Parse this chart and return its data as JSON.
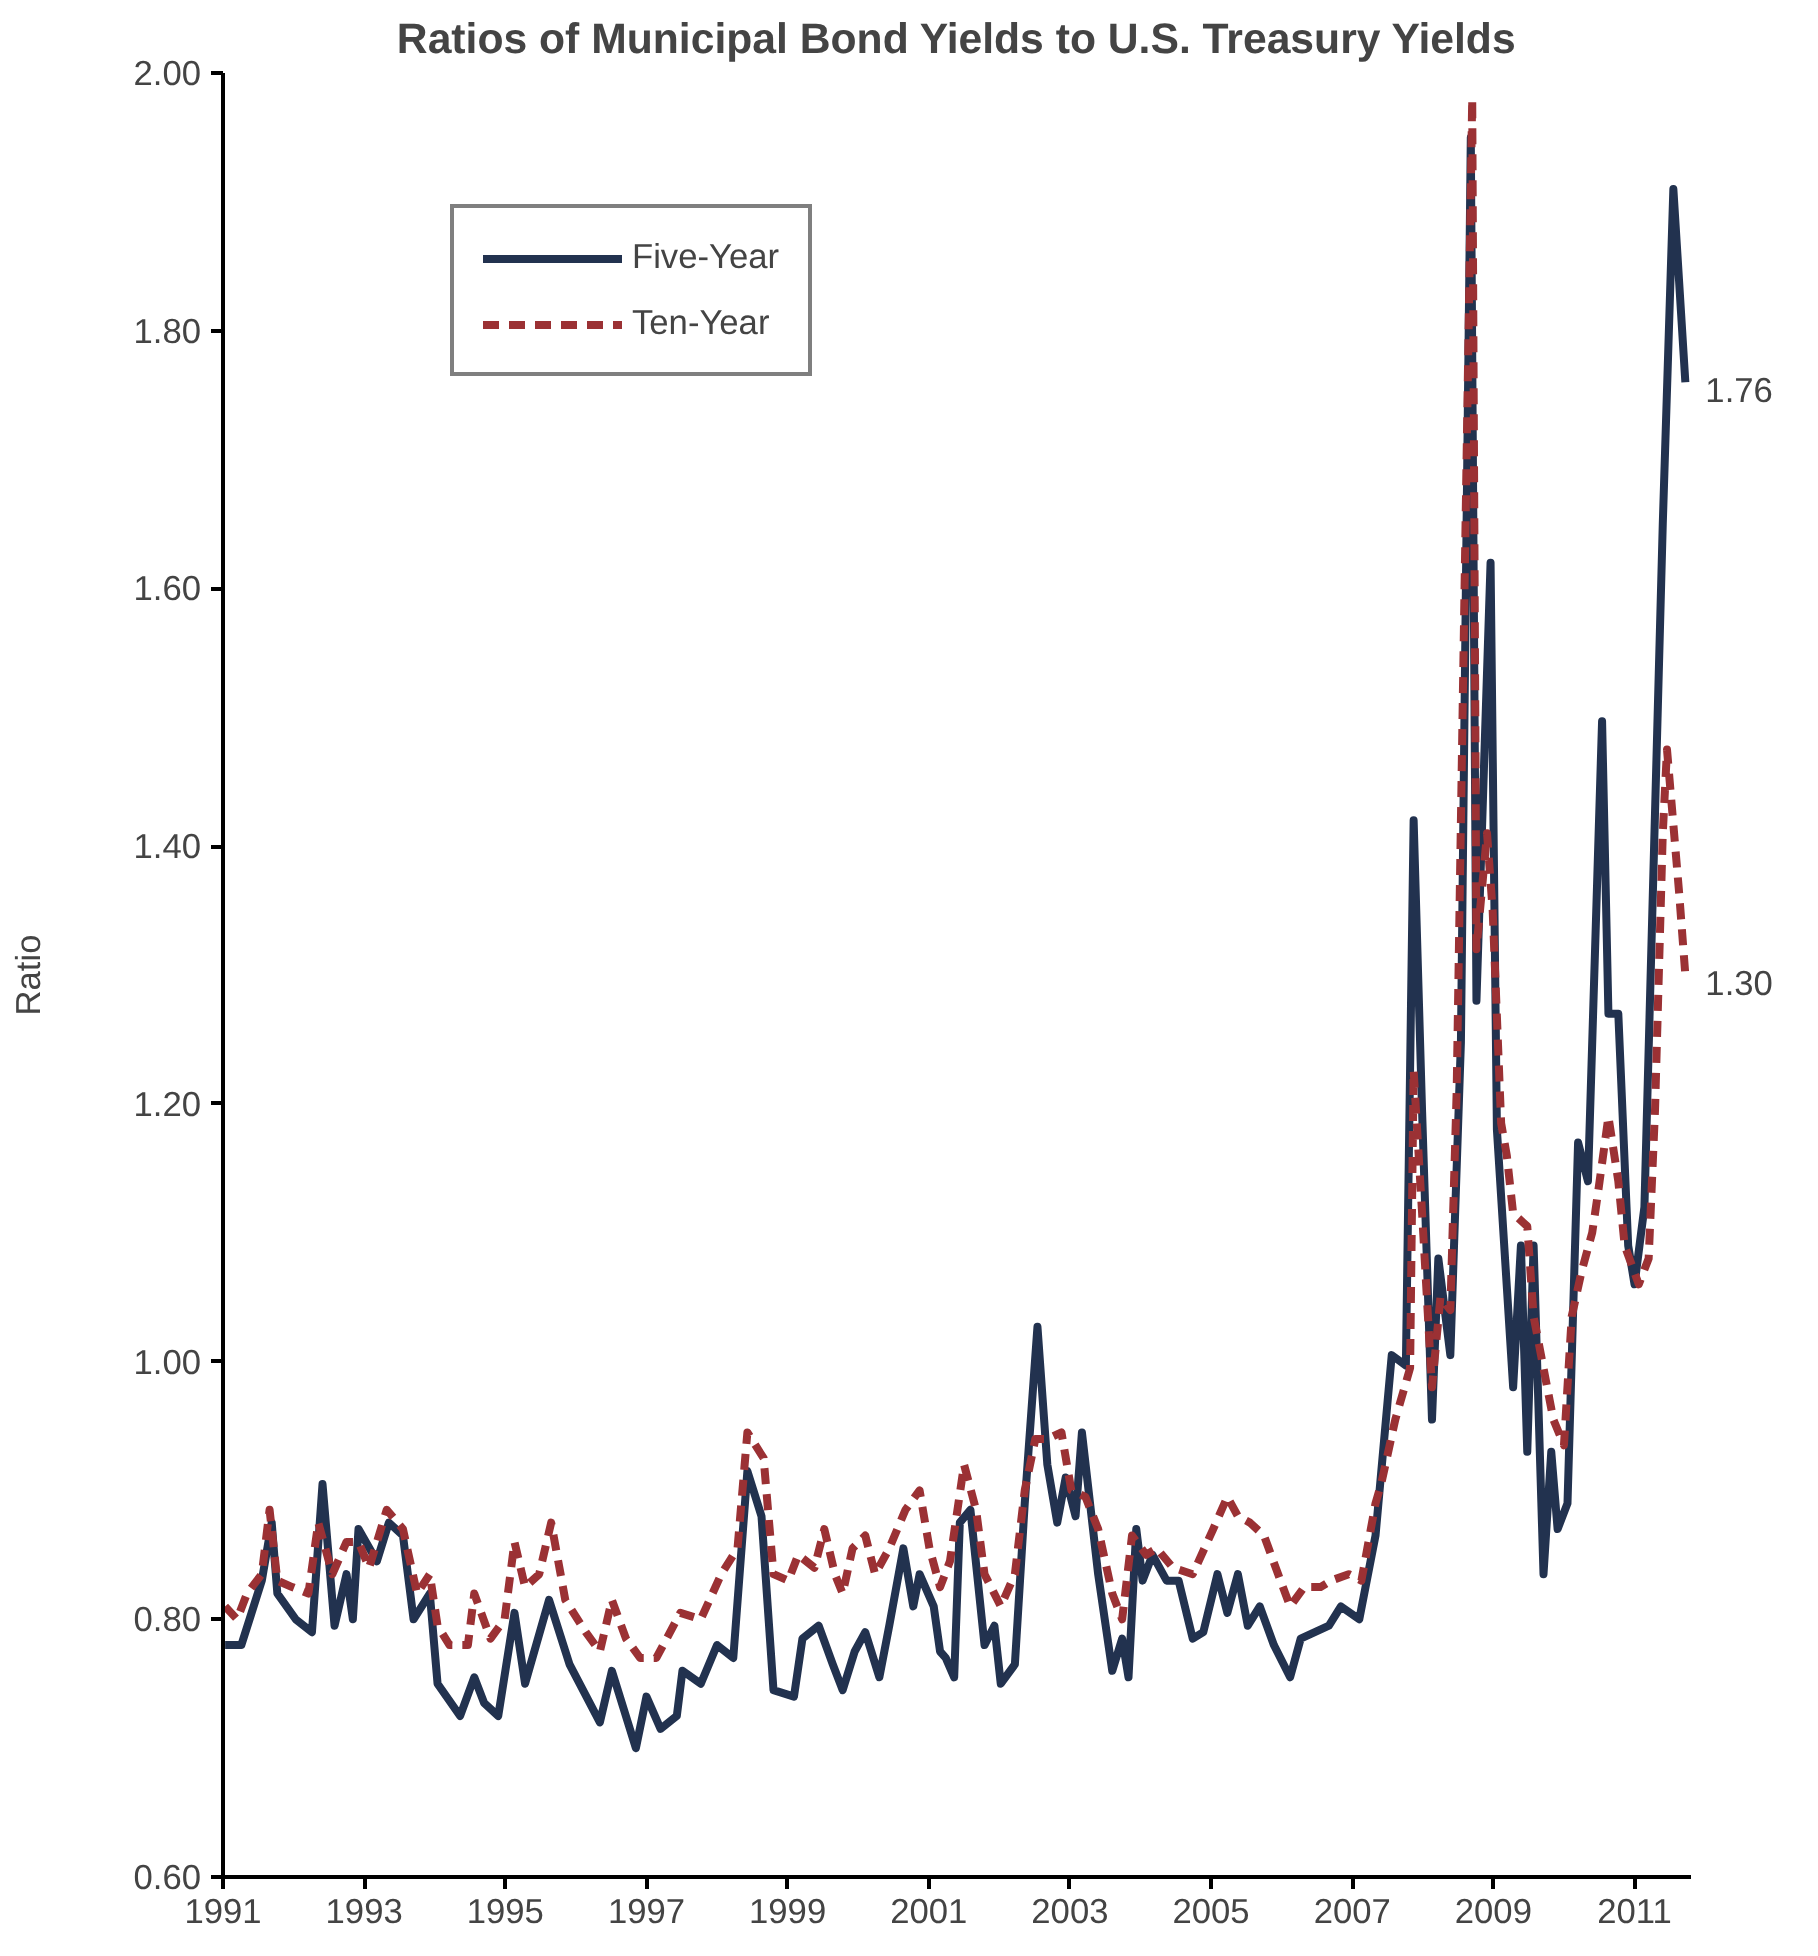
{
  "chart_data": {
    "type": "line",
    "title": "Ratios of Municipal Bond Yields to U.S. Treasury Yields",
    "ylabel": "Ratio",
    "xlim": [
      1991,
      2011.8
    ],
    "xticks": [
      1991,
      1993,
      1995,
      1997,
      1999,
      2001,
      2003,
      2005,
      2007,
      2009,
      2011
    ],
    "ylim": [
      0.6,
      2.0
    ],
    "yticks": [
      {
        "value": 0.6,
        "label": "0.60"
      },
      {
        "value": 0.8,
        "label": "0.80"
      },
      {
        "value": 1.0,
        "label": "1.00"
      },
      {
        "value": 1.2,
        "label": "1.20"
      },
      {
        "value": 1.4,
        "label": "1.40"
      },
      {
        "value": 1.6,
        "label": "1.60"
      },
      {
        "value": 1.8,
        "label": "1.80"
      },
      {
        "value": 2.0,
        "label": "2.00"
      }
    ],
    "grid": false,
    "legend": "top left",
    "annotations": [
      {
        "text": "1.76",
        "x": 2011.72,
        "y": 1.76
      },
      {
        "text": "1.30",
        "x": 2011.72,
        "y": 1.3
      }
    ],
    "series": [
      {
        "name": "Five-Year",
        "color": "#22324f",
        "line_style": "solid",
        "x": [
          1991.03,
          1991.26,
          1991.55,
          1991.69,
          1991.77,
          1992.03,
          1992.26,
          1992.41,
          1992.58,
          1992.75,
          1992.84,
          1992.92,
          1993.18,
          1993.35,
          1993.55,
          1993.7,
          1993.93,
          1994.04,
          1994.36,
          1994.56,
          1994.7,
          1994.9,
          1995.13,
          1995.28,
          1995.62,
          1995.91,
          1996.34,
          1996.51,
          1996.85,
          1997.0,
          1997.2,
          1997.43,
          1997.51,
          1997.77,
          1998.0,
          1998.23,
          1998.43,
          1998.63,
          1998.8,
          1999.09,
          1999.21,
          1999.44,
          1999.64,
          1999.78,
          1999.95,
          2000.1,
          2000.3,
          2000.44,
          2000.64,
          2000.78,
          2000.87,
          2001.07,
          2001.16,
          2001.24,
          2001.36,
          2001.44,
          2001.59,
          2001.79,
          2001.93,
          2002.02,
          2002.22,
          2002.36,
          2002.54,
          2002.68,
          2002.82,
          2002.94,
          2003.08,
          2003.17,
          2003.4,
          2003.6,
          2003.74,
          2003.83,
          2003.94,
          2004.03,
          2004.17,
          2004.37,
          2004.54,
          2004.74,
          2004.89,
          2005.09,
          2005.23,
          2005.38,
          2005.52,
          2005.69,
          2005.89,
          2006.12,
          2006.27,
          2006.47,
          2006.67,
          2006.84,
          2007.1,
          2007.33,
          2007.56,
          2007.76,
          2007.87,
          2007.99,
          2008.13,
          2008.22,
          2008.39,
          2008.54,
          2008.68,
          2008.76,
          2008.96,
          2009.05,
          2009.28,
          2009.39,
          2009.48,
          2009.57,
          2009.71,
          2009.82,
          2009.91,
          2010.05,
          2010.2,
          2010.34,
          2010.54,
          2010.63,
          2010.77,
          2010.91,
          2011.0,
          2011.14,
          2011.4,
          2011.55,
          2011.72
        ],
        "values": [
          0.78,
          0.78,
          0.83,
          0.875,
          0.82,
          0.8,
          0.79,
          0.905,
          0.795,
          0.835,
          0.8,
          0.87,
          0.845,
          0.875,
          0.865,
          0.8,
          0.82,
          0.75,
          0.725,
          0.755,
          0.735,
          0.725,
          0.805,
          0.75,
          0.815,
          0.765,
          0.72,
          0.76,
          0.7,
          0.74,
          0.715,
          0.725,
          0.76,
          0.75,
          0.78,
          0.77,
          0.915,
          0.88,
          0.745,
          0.74,
          0.785,
          0.795,
          0.765,
          0.745,
          0.775,
          0.79,
          0.755,
          0.795,
          0.855,
          0.81,
          0.835,
          0.81,
          0.775,
          0.77,
          0.755,
          0.875,
          0.885,
          0.78,
          0.795,
          0.75,
          0.765,
          0.89,
          1.027,
          0.92,
          0.875,
          0.91,
          0.88,
          0.945,
          0.835,
          0.76,
          0.785,
          0.755,
          0.87,
          0.83,
          0.85,
          0.83,
          0.83,
          0.785,
          0.79,
          0.835,
          0.805,
          0.835,
          0.795,
          0.81,
          0.78,
          0.755,
          0.785,
          0.79,
          0.795,
          0.81,
          0.8,
          0.865,
          1.005,
          0.997,
          1.42,
          1.194,
          0.955,
          1.08,
          1.005,
          1.248,
          1.95,
          1.28,
          1.62,
          1.18,
          0.98,
          1.09,
          0.93,
          1.09,
          0.835,
          0.93,
          0.87,
          0.89,
          1.17,
          1.14,
          1.497,
          1.27,
          1.27,
          1.09,
          1.06,
          1.12,
          1.65,
          1.91,
          1.76
        ]
      },
      {
        "name": "Ten-Year",
        "color": "#9b3134",
        "line_style": "dashed",
        "x": [
          1991.03,
          1991.2,
          1991.34,
          1991.55,
          1991.66,
          1991.77,
          1991.98,
          1992.21,
          1992.35,
          1992.55,
          1992.75,
          1992.92,
          1993.07,
          1993.32,
          1993.55,
          1993.75,
          1993.93,
          1994.04,
          1994.21,
          1994.47,
          1994.56,
          1994.79,
          1994.99,
          1995.13,
          1995.28,
          1995.48,
          1995.65,
          1995.85,
          1996.14,
          1996.34,
          1996.51,
          1996.71,
          1996.91,
          1997.14,
          1997.48,
          1997.77,
          1998.06,
          1998.29,
          1998.43,
          1998.66,
          1998.8,
          1999.01,
          1999.15,
          1999.38,
          1999.52,
          1999.67,
          1999.78,
          1999.92,
          2000.1,
          2000.24,
          2000.44,
          2000.67,
          2000.87,
          2001.01,
          2001.16,
          2001.3,
          2001.5,
          2001.67,
          2001.79,
          2002.02,
          2002.22,
          2002.36,
          2002.51,
          2002.68,
          2002.88,
          2003.02,
          2003.22,
          2003.4,
          2003.6,
          2003.74,
          2003.88,
          2004.08,
          2004.23,
          2004.46,
          2004.74,
          2005.03,
          2005.23,
          2005.38,
          2005.55,
          2005.75,
          2005.95,
          2006.12,
          2006.32,
          2006.55,
          2006.7,
          2006.95,
          2007.13,
          2007.33,
          2007.41,
          2007.61,
          2007.82,
          2007.87,
          2007.99,
          2008.13,
          2008.25,
          2008.39,
          2008.48,
          2008.7,
          2008.76,
          2008.91,
          2008.99,
          2009.11,
          2009.19,
          2009.28,
          2009.48,
          2009.57,
          2009.71,
          2009.85,
          2010.0,
          2010.11,
          2010.25,
          2010.4,
          2010.48,
          2010.63,
          2010.77,
          2010.86,
          2011.06,
          2011.2,
          2011.29,
          2011.4,
          2011.46,
          2011.63,
          2011.72
        ],
        "values": [
          0.81,
          0.8,
          0.82,
          0.835,
          0.885,
          0.83,
          0.825,
          0.82,
          0.875,
          0.835,
          0.86,
          0.86,
          0.84,
          0.885,
          0.87,
          0.82,
          0.835,
          0.795,
          0.78,
          0.78,
          0.82,
          0.785,
          0.8,
          0.86,
          0.825,
          0.835,
          0.875,
          0.815,
          0.79,
          0.775,
          0.815,
          0.785,
          0.77,
          0.77,
          0.805,
          0.8,
          0.835,
          0.855,
          0.945,
          0.925,
          0.835,
          0.83,
          0.85,
          0.84,
          0.87,
          0.835,
          0.82,
          0.855,
          0.865,
          0.835,
          0.855,
          0.885,
          0.9,
          0.855,
          0.825,
          0.845,
          0.92,
          0.885,
          0.835,
          0.81,
          0.835,
          0.9,
          0.94,
          0.94,
          0.945,
          0.9,
          0.895,
          0.87,
          0.82,
          0.8,
          0.865,
          0.85,
          0.855,
          0.84,
          0.835,
          0.87,
          0.895,
          0.88,
          0.875,
          0.865,
          0.835,
          0.81,
          0.825,
          0.825,
          0.83,
          0.835,
          0.83,
          0.89,
          0.905,
          0.955,
          0.995,
          1.226,
          1.115,
          0.98,
          1.05,
          1.04,
          1.21,
          1.98,
          1.32,
          1.41,
          1.35,
          1.185,
          1.16,
          1.115,
          1.105,
          1.035,
          0.995,
          0.955,
          0.935,
          1.035,
          1.07,
          1.1,
          1.13,
          1.19,
          1.14,
          1.09,
          1.06,
          1.08,
          1.195,
          1.41,
          1.475,
          1.365,
          1.3
        ]
      }
    ]
  }
}
